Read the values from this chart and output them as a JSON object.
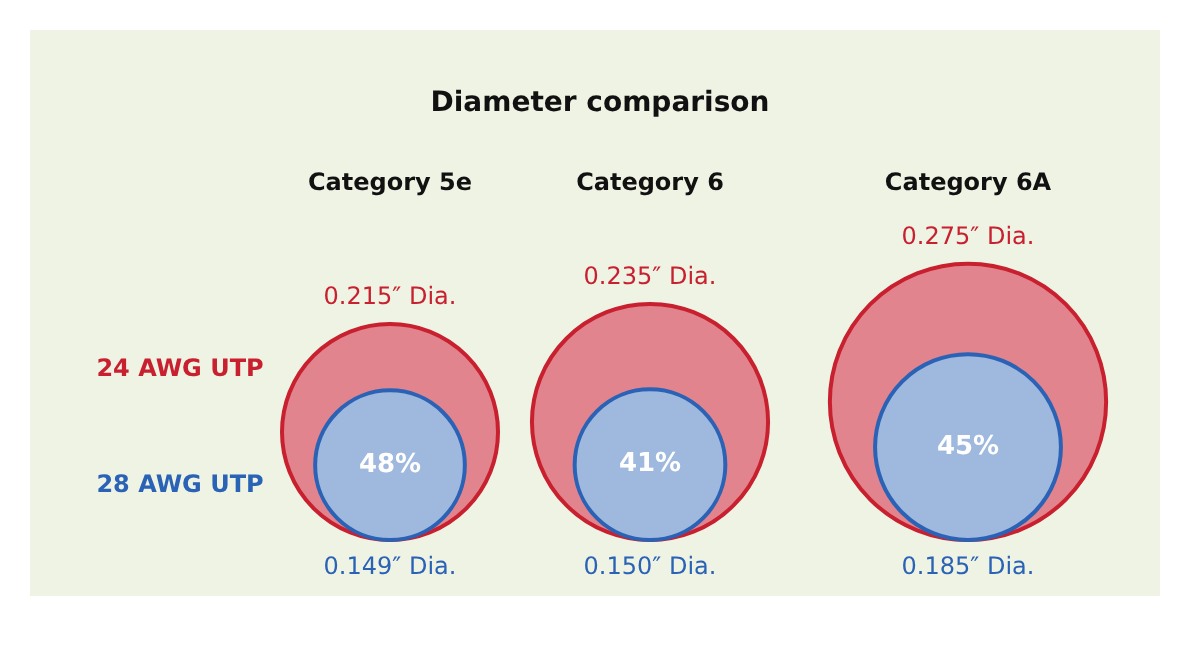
{
  "chart_data": {
    "type": "other",
    "title": "Diameter comparison",
    "categories": [
      "Category 5e",
      "Category 6",
      "Category 6A"
    ],
    "series": [
      {
        "name": "24 AWG UTP",
        "color": "#c8202f",
        "values": [
          0.215,
          0.235,
          0.275
        ],
        "value_labels": [
          "0.215″ Dia.",
          "0.235″ Dia.",
          "0.275″ Dia."
        ]
      },
      {
        "name": "28 AWG UTP",
        "color": "#2a62b6",
        "values": [
          0.149,
          0.15,
          0.185
        ],
        "value_labels": [
          "0.149″ Dia.",
          "0.150″ Dia.",
          "0.185″ Dia."
        ]
      }
    ],
    "annotations": [
      {
        "text": "48%",
        "x": "Category 5e"
      },
      {
        "text": "41%",
        "x": "Category 6"
      },
      {
        "text": "45%",
        "x": "Category 6A"
      }
    ]
  }
}
